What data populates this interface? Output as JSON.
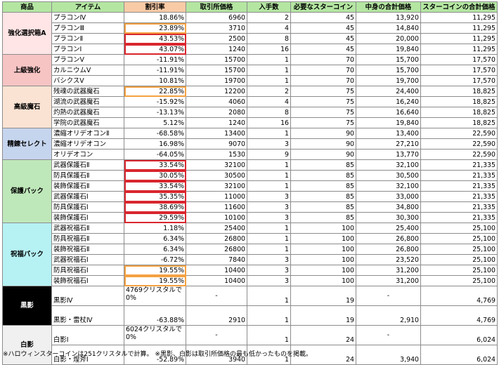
{
  "colors": {
    "header": "#b4e6a2",
    "header_discount": "#f8cba6",
    "highlight_orange": "#f4a142",
    "highlight_red": "#d9262e"
  },
  "headers": [
    "商品",
    "アイテム",
    "割引率",
    "取引所価格",
    "入手数",
    "必要なスターコイン",
    "中身の合計価格",
    "スターコインの合計価格"
  ],
  "groups": [
    {
      "category": "強化選択箱A",
      "color": "#ffe5e5",
      "rows": [
        {
          "item": "プラコンⅣ",
          "discount": "18.86%",
          "price": "6960",
          "qty": "2",
          "coins": "45",
          "content_total": "13,920",
          "coin_total": "11,295"
        },
        {
          "item": "プラコンⅢ",
          "discount": "23.89%",
          "price": "3710",
          "qty": "4",
          "coins": "45",
          "content_total": "14,840",
          "coin_total": "11,295",
          "highlight": "orange"
        },
        {
          "item": "プラコンⅡ",
          "discount": "43.53%",
          "price": "2500",
          "qty": "8",
          "coins": "45",
          "content_total": "20,000",
          "coin_total": "11,295",
          "highlight": "red"
        },
        {
          "item": "プラコンⅠ",
          "discount": "43.07%",
          "price": "1240",
          "qty": "16",
          "coins": "45",
          "content_total": "19,840",
          "coin_total": "11,295",
          "highlight": "red"
        }
      ]
    },
    {
      "category": "上級強化",
      "color": "#f7c4c4",
      "rows": [
        {
          "item": "プラコンⅤ",
          "discount": "-11.91%",
          "price": "15700",
          "qty": "1",
          "coins": "70",
          "content_total": "15,700",
          "coin_total": "17,570"
        },
        {
          "item": "カルニウムⅤ",
          "discount": "-11.91%",
          "price": "15700",
          "qty": "1",
          "coins": "70",
          "content_total": "15,700",
          "coin_total": "17,570"
        },
        {
          "item": "バシクスⅤ",
          "discount": "10.81%",
          "price": "19700",
          "qty": "1",
          "coins": "70",
          "content_total": "19,700",
          "coin_total": "17,570"
        }
      ]
    },
    {
      "category": "高級魔石",
      "color": "#fbe3d3",
      "rows": [
        {
          "item": "残魂の武器魔石",
          "discount": "22.85%",
          "price": "12200",
          "qty": "2",
          "coins": "75",
          "content_total": "24,400",
          "coin_total": "18,825",
          "highlight": "orange"
        },
        {
          "item": "湖流の武器魔石",
          "discount": "-15.92%",
          "price": "4060",
          "qty": "4",
          "coins": "75",
          "content_total": "16,240",
          "coin_total": "18,825"
        },
        {
          "item": "灼熱の武器魔石",
          "discount": "-13.13%",
          "price": "2080",
          "qty": "8",
          "coins": "75",
          "content_total": "16,640",
          "coin_total": "18,825"
        },
        {
          "item": "学院の武器魔石",
          "discount": "5.12%",
          "price": "1240",
          "qty": "16",
          "coins": "75",
          "content_total": "19,840",
          "coin_total": "18,825"
        }
      ]
    },
    {
      "category": "精錬セレクト",
      "color": "#c6d5ee",
      "rows": [
        {
          "item": "濃縮オリデオコンⅡ",
          "discount": "-68.58%",
          "price": "13400",
          "qty": "1",
          "coins": "90",
          "content_total": "13,400",
          "coin_total": "22,590"
        },
        {
          "item": "濃縮オリデオコン",
          "discount": "16.98%",
          "price": "9070",
          "qty": "3",
          "coins": "90",
          "content_total": "27,210",
          "coin_total": "22,590"
        },
        {
          "item": "オリデオコン",
          "discount": "-64.05%",
          "price": "1530",
          "qty": "9",
          "coins": "90",
          "content_total": "13,770",
          "coin_total": "22,590"
        }
      ]
    },
    {
      "category": "保護パック",
      "color": "#bfe8ba",
      "rows": [
        {
          "item": "武器保護石Ⅱ",
          "discount": "33.54%",
          "price": "32100",
          "qty": "1",
          "coins": "85",
          "content_total": "32,100",
          "coin_total": "21,335",
          "highlight": "red"
        },
        {
          "item": "防具保護石Ⅱ",
          "discount": "30.05%",
          "price": "30500",
          "qty": "1",
          "coins": "85",
          "content_total": "30,500",
          "coin_total": "21,335",
          "highlight": "red"
        },
        {
          "item": "装飾保護石Ⅱ",
          "discount": "33.54%",
          "price": "32100",
          "qty": "1",
          "coins": "85",
          "content_total": "32,100",
          "coin_total": "21,335",
          "highlight": "red"
        },
        {
          "item": "武器保護石Ⅰ",
          "discount": "35.35%",
          "price": "11000",
          "qty": "3",
          "coins": "85",
          "content_total": "33,000",
          "coin_total": "21,335",
          "highlight": "red"
        },
        {
          "item": "防具保護石Ⅰ",
          "discount": "38.69%",
          "price": "11600",
          "qty": "3",
          "coins": "85",
          "content_total": "34,800",
          "coin_total": "21,335",
          "highlight": "red"
        },
        {
          "item": "装飾保護石Ⅰ",
          "discount": "29.59%",
          "price": "10100",
          "qty": "3",
          "coins": "85",
          "content_total": "30,300",
          "coin_total": "21,335",
          "highlight": "red"
        }
      ]
    },
    {
      "category": "祝福パック",
      "color": "#b6f1f4",
      "rows": [
        {
          "item": "武器祝福石Ⅱ",
          "discount": "1.18%",
          "price": "25400",
          "qty": "1",
          "coins": "100",
          "content_total": "25,400",
          "coin_total": "25,100"
        },
        {
          "item": "防具祝福石Ⅱ",
          "discount": "6.34%",
          "price": "26800",
          "qty": "1",
          "coins": "100",
          "content_total": "26,800",
          "coin_total": "25,100"
        },
        {
          "item": "装飾祝福石Ⅱ",
          "discount": "6.34%",
          "price": "26800",
          "qty": "1",
          "coins": "100",
          "content_total": "26,800",
          "coin_total": "25,100"
        },
        {
          "item": "武器祝福石Ⅰ",
          "discount": "-6.72%",
          "price": "7840",
          "qty": "3",
          "coins": "100",
          "content_total": "23,520",
          "coin_total": "25,100"
        },
        {
          "item": "防具祝福石Ⅰ",
          "discount": "19.55%",
          "price": "10400",
          "qty": "3",
          "coins": "100",
          "content_total": "31,200",
          "coin_total": "25,100",
          "highlight": "orange"
        },
        {
          "item": "装飾祝福石Ⅰ",
          "discount": "19.55%",
          "price": "10400",
          "qty": "3",
          "coins": "100",
          "content_total": "31,200",
          "coin_total": "25,100",
          "highlight": "orange"
        }
      ]
    },
    {
      "category": "黒影",
      "color": "#000000",
      "text_color": "#ffffff",
      "tall": true,
      "rows": [
        {
          "item": "黒影Ⅳ",
          "discount": "4769クリスタルで0%",
          "price": "-",
          "qty": "1",
          "coins": "19",
          "content_total": "-",
          "coin_total": "4,769"
        },
        {
          "item": "黒影・雷杖Ⅳ",
          "discount": "-63.88%",
          "price": "2910",
          "qty": "1",
          "coins": "19",
          "content_total": "2,910",
          "coin_total": "4,769"
        }
      ]
    },
    {
      "category": "白影",
      "color": "#f0f0f0",
      "tall": true,
      "rows": [
        {
          "item": "白影Ⅰ",
          "discount": "6024クリスタルで0%",
          "price": "-",
          "qty": "1",
          "coins": "24",
          "content_total": "-",
          "coin_total": "6,024"
        },
        {
          "item": "白影・煌斧Ⅰ",
          "discount": "-52.89%",
          "price": "3940",
          "qty": "1",
          "coins": "24",
          "content_total": "3,940",
          "coin_total": "6,024"
        }
      ]
    }
  ],
  "footnote": "※ハロウィンスターコインは251クリスタルで計算。 ※黒影、白影は取引所価格の最も低かったものを掲載。"
}
